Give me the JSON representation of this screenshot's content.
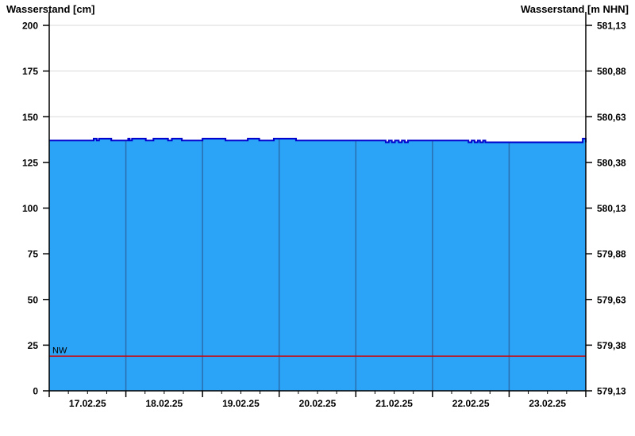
{
  "titles": {
    "left": "Wasserstand [cm]",
    "right": "Wasserstand [m NHN]"
  },
  "chart_data": {
    "type": "area",
    "title": "Wasserstand (water level gauge, 7-day view)",
    "y_axis_left": {
      "title": "Wasserstand [cm]",
      "min": 0,
      "max": 200,
      "tick_interval": 25,
      "ticks": [
        "0",
        "25",
        "50",
        "75",
        "100",
        "125",
        "150",
        "175",
        "200"
      ],
      "tick_values": [
        0,
        25,
        50,
        75,
        100,
        125,
        150,
        175,
        200
      ]
    },
    "y_axis_right": {
      "title": "Wasserstand [m NHN]",
      "min": 579.13,
      "max": 581.13,
      "ticks": [
        "579,13",
        "579,38",
        "579,63",
        "579,88",
        "580,13",
        "580,38",
        "580,63",
        "580,88",
        "581,13"
      ],
      "tick_values": [
        579.13,
        579.38,
        579.63,
        579.88,
        580.13,
        580.38,
        580.63,
        580.88,
        581.13
      ]
    },
    "x_axis": {
      "tick_labels": [
        "17.02.25",
        "18.02.25",
        "19.02.25",
        "20.02.25",
        "21.02.25",
        "22.02.25",
        "23.02.25"
      ],
      "span_days": 7,
      "minor_ticks_per_day": 4,
      "note": "major ticks and vertical day-boundary lines at midnight; labels centered at midday"
    },
    "series": [
      {
        "name": "Wasserstand",
        "unit": "cm",
        "style": "step-area",
        "points": [
          [
            0.0,
            137
          ],
          [
            0.56,
            137
          ],
          [
            0.58,
            138
          ],
          [
            0.62,
            137
          ],
          [
            0.65,
            138
          ],
          [
            0.79,
            138
          ],
          [
            0.81,
            137
          ],
          [
            1.0,
            137
          ],
          [
            1.03,
            138
          ],
          [
            1.05,
            137
          ],
          [
            1.08,
            138
          ],
          [
            1.24,
            138
          ],
          [
            1.26,
            137
          ],
          [
            1.33,
            137
          ],
          [
            1.36,
            138
          ],
          [
            1.52,
            138
          ],
          [
            1.55,
            137
          ],
          [
            1.6,
            138
          ],
          [
            1.7,
            138
          ],
          [
            1.73,
            137
          ],
          [
            1.97,
            137
          ],
          [
            2.0,
            138
          ],
          [
            2.27,
            138
          ],
          [
            2.3,
            137
          ],
          [
            2.56,
            137
          ],
          [
            2.59,
            138
          ],
          [
            2.71,
            138
          ],
          [
            2.74,
            137
          ],
          [
            2.9,
            137
          ],
          [
            2.93,
            138
          ],
          [
            3.19,
            138
          ],
          [
            3.22,
            137
          ],
          [
            4.36,
            137
          ],
          [
            4.39,
            136
          ],
          [
            4.43,
            137
          ],
          [
            4.47,
            136
          ],
          [
            4.51,
            137
          ],
          [
            4.56,
            136
          ],
          [
            4.6,
            137
          ],
          [
            4.64,
            136
          ],
          [
            4.68,
            137
          ],
          [
            5.44,
            137
          ],
          [
            5.47,
            136
          ],
          [
            5.51,
            137
          ],
          [
            5.55,
            136
          ],
          [
            5.59,
            137
          ],
          [
            5.62,
            136
          ],
          [
            5.66,
            137
          ],
          [
            5.69,
            136
          ],
          [
            5.95,
            136
          ],
          [
            6.93,
            136
          ],
          [
            6.96,
            138
          ],
          [
            7.0,
            136
          ]
        ]
      }
    ],
    "reference_lines": [
      {
        "label": "NW",
        "value_cm": 19,
        "color": "#d10000"
      }
    ],
    "legend": "none",
    "grid": {
      "horizontal": true,
      "vertical_day_lines_on_area": true
    },
    "colors": {
      "area_fill": "#2ba3f7",
      "water_line": "#0000cd",
      "day_line": "#2b6fae",
      "h_grid": "#d9d9d9",
      "axis": "#000000",
      "nw_line": "#d10000"
    }
  }
}
